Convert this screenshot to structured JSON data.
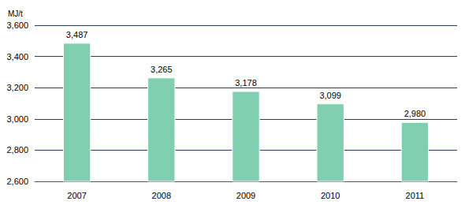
{
  "chart_data": {
    "type": "bar",
    "ylabel": "MJ/t",
    "categories": [
      "2007",
      "2008",
      "2009",
      "2010",
      "2011"
    ],
    "values": [
      3487,
      3265,
      3178,
      3099,
      2980
    ],
    "value_labels": [
      "3,487",
      "3,265",
      "3,178",
      "3,099",
      "2,980"
    ],
    "color": "#80cfb1",
    "ylim": [
      2600,
      3600
    ],
    "yticks": [
      {
        "value": 2600,
        "label": "2,600"
      },
      {
        "value": 2800,
        "label": "2,800"
      },
      {
        "value": 3000,
        "label": "3,000"
      },
      {
        "value": 3200,
        "label": "3,200"
      },
      {
        "value": 3400,
        "label": "3,400"
      },
      {
        "value": 3600,
        "label": "3,600"
      }
    ],
    "grid": true,
    "data_labels": true
  }
}
